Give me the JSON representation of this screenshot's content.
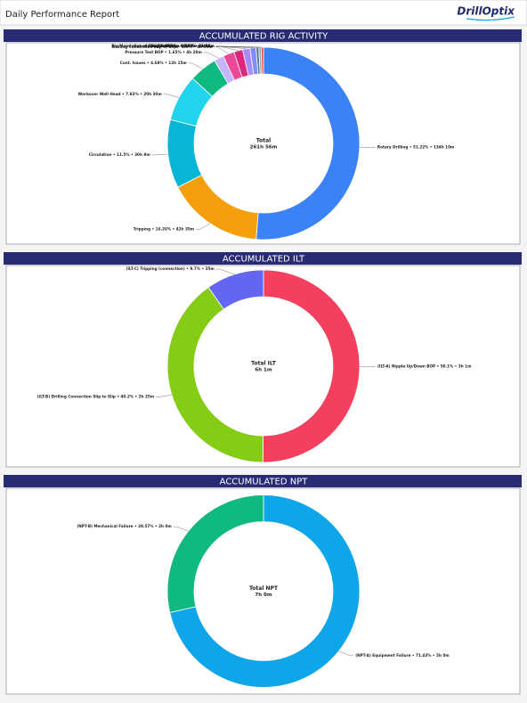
{
  "header": {
    "title": "Daily Performance Report",
    "logo": "DrillOptix"
  },
  "chart_data": [
    {
      "type": "pie",
      "title": "ACCUMULATED RIG ACTIVITY",
      "center_label": "Total",
      "total": "261h 56m",
      "categories": [
        "Rotary Drilling",
        "Tripping",
        "Circulation",
        "Workover Well Head",
        "Cont. Issues",
        "Pressure Test BOP",
        "Drilling Connection Slip to Slip",
        "Casing/cement",
        "Troubleshoot",
        "Others",
        "Rig Maintenance - Service TDS",
        "Cut and Slip Drill line",
        "Surveying"
      ],
      "values": [
        51.22,
        16.26,
        11.5,
        7.83,
        4.68,
        1.65,
        1.9,
        1.47,
        1.24,
        1.0,
        0.47,
        0.39,
        0.39
      ],
      "labels": [
        "Rotary Drilling • 51.22% • 134h 10m",
        "Tripping • 16.26% • 42h 35m",
        "Circulation • 11.5% • 30h 8m",
        "Workover Well Head • 7.83% • 20h 30m",
        "Cont. Issues • 4.68% • 12h 15m",
        "Pressure Test BOP • 1.65% • 4h 20m",
        "Drilling Connection Slip to Slip • 1.9% • 4h 59m",
        "Casing/cement • 1.47% • 3h 51m",
        "Troubleshoot • 1.24% • 3h 15m",
        "Others • 1.0% • 2h 38m",
        "Rig Maintenance - Service TDS • 0.47% • 1h 14m",
        "Cut and Slip Drill line • 0.39% • 1h 1m",
        "Surveying • 0.39% • 1h 1m"
      ],
      "colors": [
        "#3b82f6",
        "#f59e0b",
        "#06b6d4",
        "#22d3ee",
        "#10b981",
        "#c4b5fd",
        "#ec4899",
        "#db2777",
        "#a78bfa",
        "#818cf8",
        "#64748b",
        "#94a3b8",
        "#ef4444"
      ]
    },
    {
      "type": "pie",
      "title": "ACCUMULATED ILT",
      "center_label": "Total ILT",
      "total": "6h 1m",
      "categories": [
        "(ILT-A) Nipple Up/Down BOP",
        "(ILT-B) Drilling Connection Slip to Slip",
        "(ILT-C) Tripping (connection)"
      ],
      "values": [
        50.1,
        40.2,
        9.7
      ],
      "labels": [
        "(ILT-A) Nipple Up/Down BOP • 50.1% • 3h 1m",
        "(ILT-B) Drilling Connection Slip to Slip • 40.2% • 2h 25m",
        "(ILT-C) Tripping (connection) • 9.7% • 35m"
      ],
      "colors": [
        "#f43f5e",
        "#84cc16",
        "#6366f1"
      ]
    },
    {
      "type": "pie",
      "title": "ACCUMULATED NPT",
      "center_label": "Total NPT",
      "total": "7h 0m",
      "categories": [
        "(NPT-A) Equipment Failure",
        "(NPT-B) Mechanical Failure"
      ],
      "values": [
        71.43,
        28.57
      ],
      "labels": [
        "(NPT-A) Equipment Failure • 71.43% • 5h 0m",
        "(NPT-B) Mechanical Failure • 28.57% • 2h 0m"
      ],
      "colors": [
        "#0ea5e9",
        "#10b981"
      ]
    }
  ]
}
